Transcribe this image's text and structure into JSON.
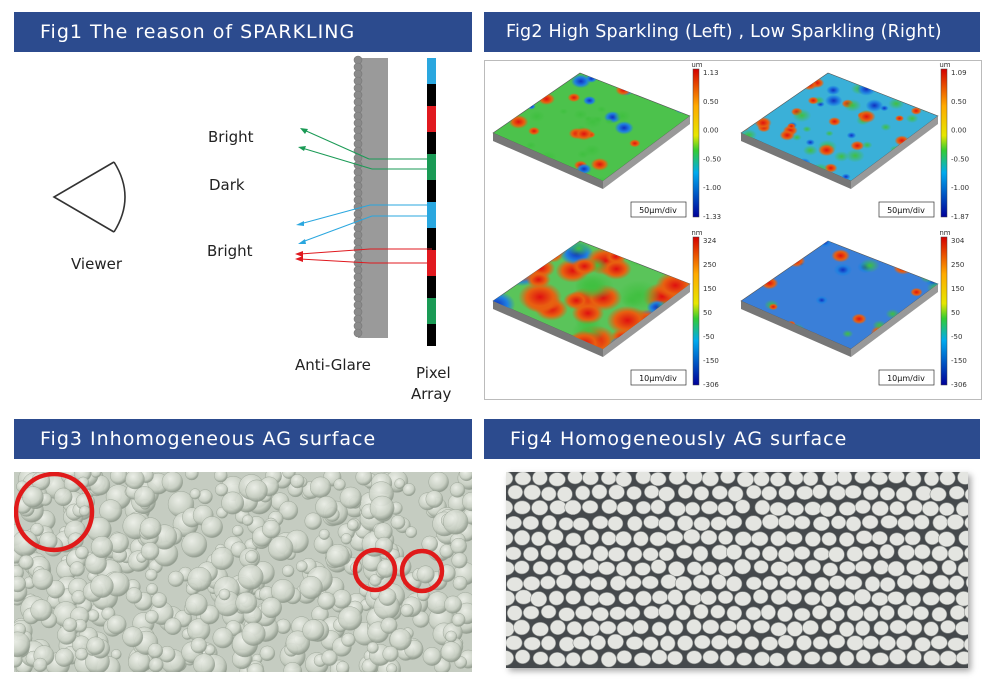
{
  "fig1": {
    "title": "Fig1 The reason of SPARKLING",
    "viewer_label": "Viewer",
    "bright_top_label": "Bright",
    "dark_label": "Dark",
    "bright_bottom_label": "Bright",
    "anti_glare_label": "Anti-Glare",
    "pixel_label_line1": "Pixel",
    "pixel_label_line2": "Array",
    "colors": {
      "green": "#1a9a55",
      "blue": "#2aa7df",
      "red": "#e0191f",
      "black": "#000000"
    }
  },
  "fig2": {
    "title": "Fig2 High Sparkling (Left) , Low Sparkling (Right)",
    "plots": [
      {
        "unit": "um",
        "ticks": [
          "1.13",
          "0.50",
          "0.00",
          "-0.50",
          "-1.00",
          "-1.33"
        ],
        "scale": "50μm/div"
      },
      {
        "unit": "um",
        "ticks": [
          "1.09",
          "0.50",
          "0.00",
          "-0.50",
          "-1.00",
          "-1.87"
        ],
        "scale": "50μm/div"
      },
      {
        "unit": "nm",
        "ticks": [
          "324",
          "250",
          "150",
          "50",
          "-50",
          "-150",
          "-306"
        ],
        "scale": "10μm/div"
      },
      {
        "unit": "nm",
        "ticks": [
          "304",
          "250",
          "150",
          "50",
          "-50",
          "-150",
          "-306"
        ],
        "scale": "10μm/div"
      }
    ]
  },
  "fig3": {
    "title": "Fig3 Inhomogeneous AG surface"
  },
  "fig4": {
    "title": "Fig4 Homogeneously AG surface"
  }
}
